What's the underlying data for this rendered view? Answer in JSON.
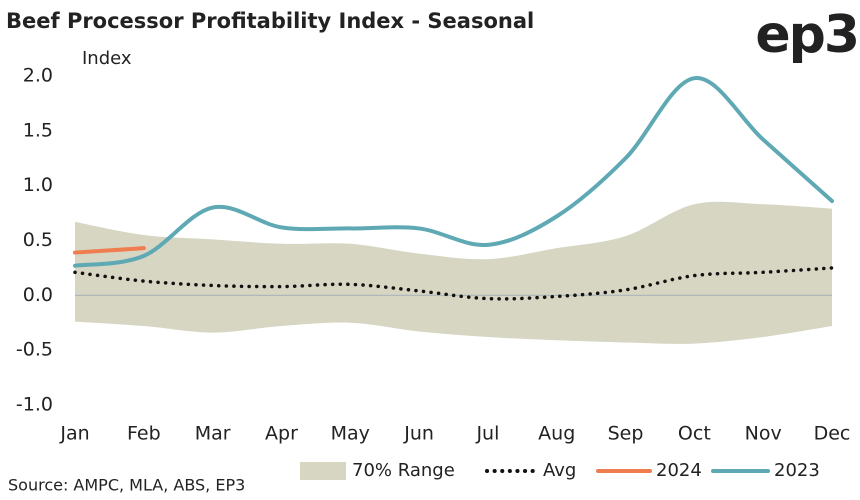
{
  "chart_data": {
    "type": "line",
    "title": "Beef Processor Profitability Index - Seasonal",
    "logo": "ep3",
    "y_label": "Index",
    "source": "Source: AMPC, MLA, ABS, EP3",
    "categories": [
      "Jan",
      "Feb",
      "Mar",
      "Apr",
      "May",
      "Jun",
      "Jul",
      "Aug",
      "Sep",
      "Oct",
      "Nov",
      "Dec"
    ],
    "ylim": [
      -1.0,
      2.0
    ],
    "yticks": [
      {
        "value": -1.0,
        "label": "-1.0"
      },
      -0.5,
      {
        "value": 0,
        "label": "0.0"
      },
      0.5,
      {
        "value": 1.0,
        "label": "1.0"
      },
      1.5,
      {
        "value": 2.0,
        "label": "2.0"
      }
    ],
    "range": {
      "name": "70% Range",
      "color": "#d6d6c3",
      "upper": [
        0.67,
        0.55,
        0.51,
        0.47,
        0.47,
        0.38,
        0.33,
        0.43,
        0.54,
        0.83,
        0.83,
        0.79
      ],
      "lower": [
        -0.24,
        -0.28,
        -0.34,
        -0.28,
        -0.25,
        -0.33,
        -0.38,
        -0.41,
        -0.43,
        -0.44,
        -0.38,
        -0.28
      ]
    },
    "series": [
      {
        "name": "Avg",
        "color": "#111111",
        "dash": true,
        "values": [
          0.21,
          0.13,
          0.09,
          0.08,
          0.1,
          0.04,
          -0.03,
          -0.01,
          0.05,
          0.18,
          0.21,
          0.25
        ]
      },
      {
        "name": "2024",
        "color": "#ef7d4f",
        "values": [
          0.39,
          0.43,
          null,
          null,
          null,
          null,
          null,
          null,
          null,
          null,
          null,
          null
        ]
      },
      {
        "name": "2023",
        "color": "#5ea9b4",
        "values": [
          0.27,
          0.36,
          0.8,
          0.62,
          0.61,
          0.61,
          0.46,
          0.72,
          1.25,
          1.98,
          1.42,
          0.86
        ]
      }
    ]
  }
}
